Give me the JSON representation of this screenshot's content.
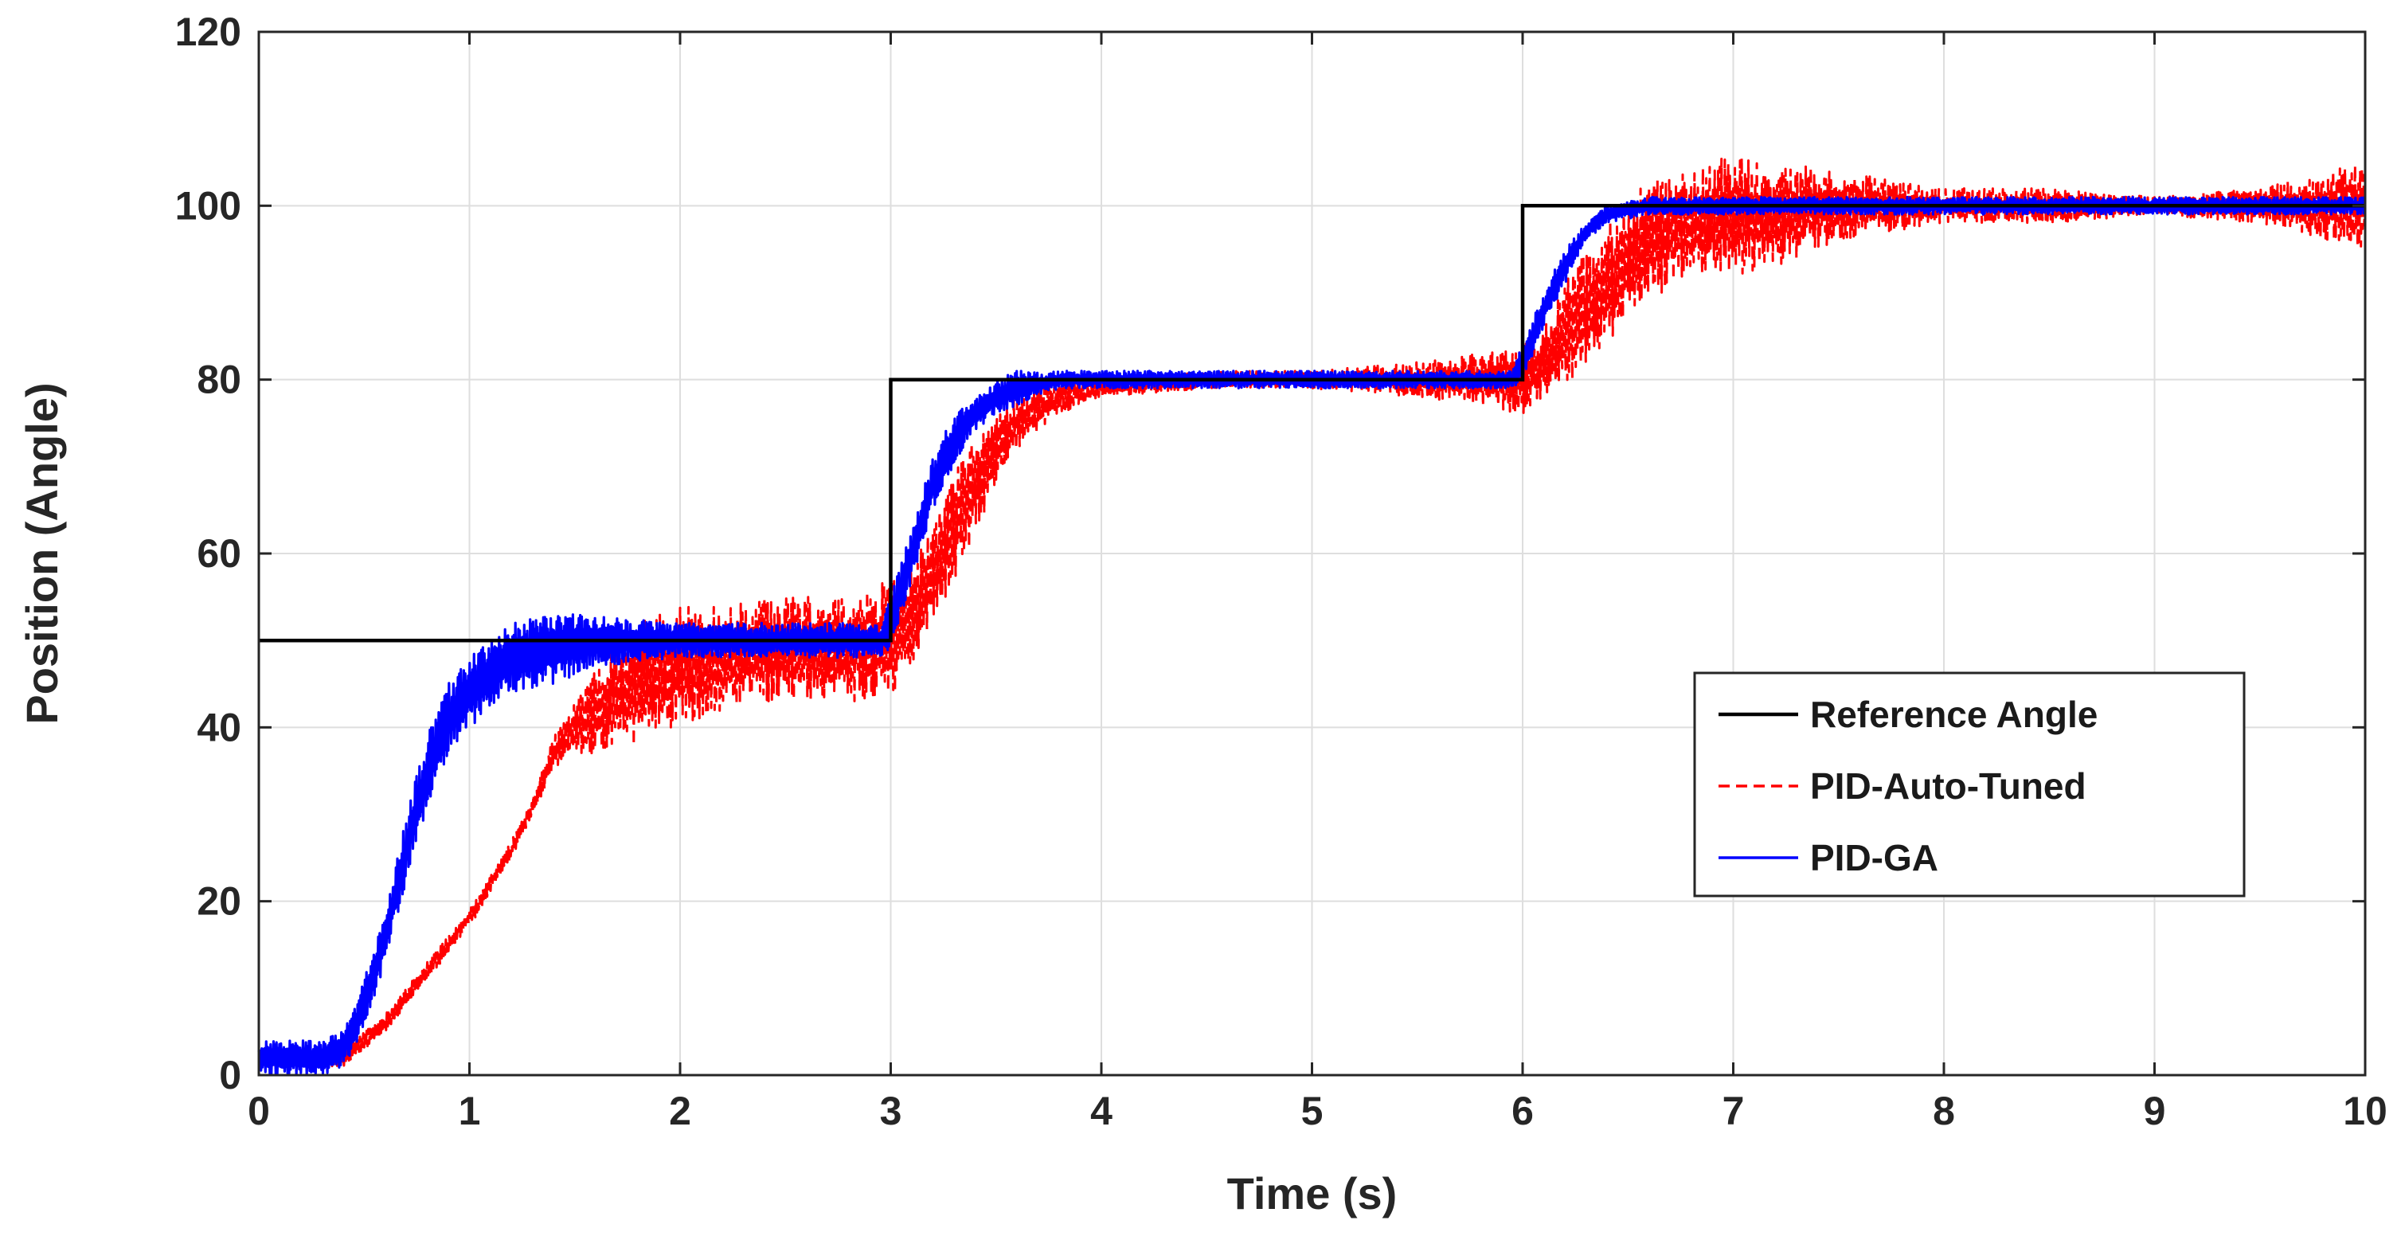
{
  "chart_data": {
    "type": "line",
    "title": "",
    "xlabel": "Time (s)",
    "ylabel": "Position (Angle)",
    "xlim": [
      0,
      10
    ],
    "ylim": [
      0,
      120
    ],
    "xticks": [
      0,
      1,
      2,
      3,
      4,
      5,
      6,
      7,
      8,
      9,
      10
    ],
    "yticks": [
      0,
      20,
      40,
      60,
      80,
      100,
      120
    ],
    "xtick_labels": [
      "0",
      "1",
      "2",
      "3",
      "4",
      "5",
      "6",
      "7",
      "8",
      "9",
      "10"
    ],
    "ytick_labels": [
      "0",
      "20",
      "40",
      "60",
      "80",
      "100",
      "120"
    ],
    "grid": true,
    "legend_position": "lower-right",
    "series": [
      {
        "name": "Reference Angle",
        "style": "solid",
        "color": "#000000",
        "x": [
          0,
          3,
          3,
          6,
          6,
          10
        ],
        "y": [
          50,
          50,
          80,
          80,
          100,
          100
        ]
      },
      {
        "name": "PID-Auto-Tuned",
        "style": "dashed",
        "color": "#ff0000",
        "x": [
          0,
          0.2,
          0.4,
          0.5,
          0.6,
          0.7,
          0.8,
          0.9,
          1.0,
          1.1,
          1.2,
          1.3,
          1.4,
          1.5,
          1.6,
          1.8,
          2.0,
          2.2,
          2.4,
          2.6,
          2.8,
          3.0,
          3.1,
          3.2,
          3.3,
          3.4,
          3.5,
          3.6,
          3.8,
          4.0,
          4.5,
          5.0,
          5.5,
          5.8,
          6.0,
          6.1,
          6.2,
          6.3,
          6.4,
          6.5,
          6.6,
          6.8,
          7.0,
          7.2,
          7.5,
          8.0,
          8.5,
          9.0,
          9.5,
          10.0
        ],
        "y": [
          2,
          2,
          2,
          4,
          6,
          9,
          12,
          15,
          18,
          22,
          26,
          31,
          37,
          40,
          42,
          45,
          47,
          48,
          49,
          49,
          49,
          50,
          53,
          57,
          63,
          68,
          72,
          75,
          78,
          79,
          80,
          80,
          80,
          80,
          80,
          82,
          85,
          88,
          91,
          94,
          96,
          98,
          99,
          99,
          100,
          100,
          100,
          100,
          100,
          100
        ],
        "noise": [
          1,
          1,
          1,
          1,
          1,
          1,
          1,
          1,
          1,
          1,
          1,
          1,
          2,
          3,
          5,
          7,
          7,
          6,
          6,
          6,
          6,
          7,
          6,
          6,
          6,
          6,
          4,
          3,
          2,
          1,
          1,
          1,
          2,
          3,
          4,
          4,
          6,
          7,
          7,
          7,
          7,
          6,
          7,
          6,
          4,
          2,
          2,
          1,
          2,
          5
        ]
      },
      {
        "name": "PID-GA",
        "style": "solid",
        "color": "#0000ff",
        "x": [
          0,
          0.3,
          0.4,
          0.5,
          0.6,
          0.7,
          0.8,
          0.9,
          1.0,
          1.1,
          1.2,
          1.4,
          1.6,
          2.0,
          2.5,
          2.95,
          3.0,
          3.1,
          3.2,
          3.3,
          3.4,
          3.5,
          3.6,
          3.8,
          4.0,
          5.0,
          5.95,
          6.0,
          6.1,
          6.2,
          6.3,
          6.4,
          6.6,
          7.0,
          8.0,
          9.0,
          10.0
        ],
        "y": [
          2,
          2,
          3,
          8,
          16,
          26,
          35,
          41,
          44,
          46,
          48,
          49,
          50,
          50,
          50,
          50,
          52,
          60,
          68,
          73,
          76,
          78,
          79,
          80,
          80,
          80,
          80,
          82,
          88,
          93,
          97,
          99,
          100,
          100,
          100,
          100,
          100
        ],
        "noise": [
          2,
          2,
          2,
          3,
          3,
          4,
          4,
          4,
          4,
          4,
          4,
          4,
          3,
          2,
          2,
          2,
          3,
          3,
          3,
          3,
          2,
          2,
          2,
          1,
          1,
          1,
          1,
          2,
          2,
          2,
          1,
          1,
          1,
          1,
          1,
          1,
          1
        ]
      }
    ]
  }
}
